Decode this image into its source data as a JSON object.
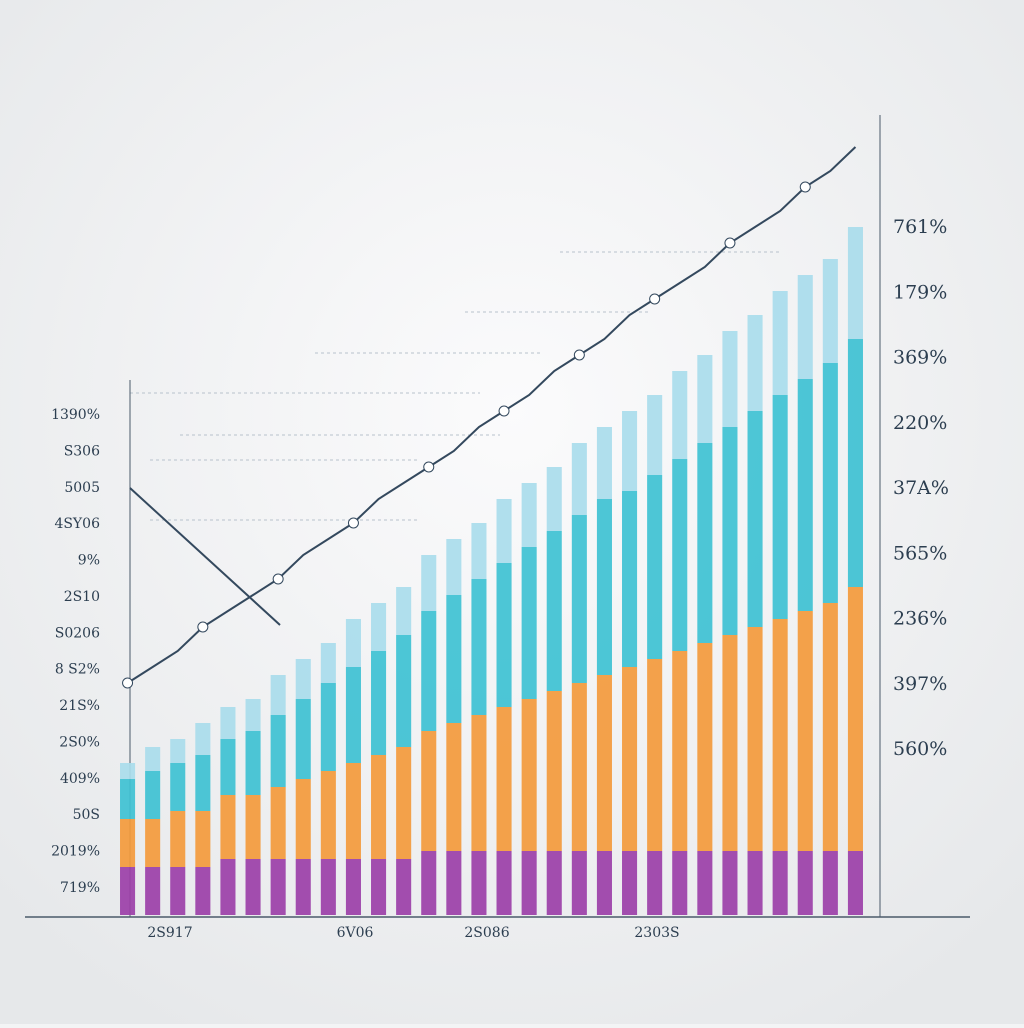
{
  "chart_data": {
    "type": "bar",
    "categories": [
      null,
      null,
      null,
      null,
      null,
      null,
      null,
      null,
      null,
      null,
      null,
      null,
      null,
      null,
      null,
      null,
      null,
      null,
      null,
      null,
      null,
      null,
      null,
      null,
      null,
      null,
      null,
      null,
      null,
      null
    ],
    "series": [
      {
        "color": "#9b3fa8",
        "values": [
          6,
          6,
          6,
          6,
          7,
          7,
          7,
          7,
          7,
          7,
          7,
          7,
          8,
          8,
          8,
          8,
          8,
          8,
          8,
          8,
          8,
          8,
          8,
          8,
          8,
          8,
          8,
          8,
          8,
          8
        ]
      },
      {
        "color": "#f39a3c",
        "values": [
          6,
          6,
          7,
          7,
          8,
          8,
          9,
          10,
          11,
          12,
          13,
          14,
          15,
          16,
          17,
          18,
          19,
          20,
          21,
          22,
          23,
          24,
          25,
          26,
          27,
          28,
          29,
          30,
          31,
          33
        ]
      },
      {
        "color": "#3ec1d3",
        "values": [
          5,
          6,
          6,
          7,
          7,
          8,
          9,
          10,
          11,
          12,
          13,
          14,
          15,
          16,
          17,
          18,
          19,
          20,
          21,
          22,
          22,
          23,
          24,
          25,
          26,
          27,
          28,
          29,
          30,
          31
        ]
      },
      {
        "color": "#a9dcec",
        "values": [
          2,
          3,
          3,
          4,
          4,
          4,
          5,
          5,
          5,
          6,
          6,
          6,
          7,
          7,
          7,
          8,
          8,
          8,
          9,
          9,
          10,
          10,
          11,
          11,
          12,
          12,
          13,
          13,
          13,
          14
        ]
      }
    ],
    "line": {
      "color": "#34495e",
      "values": [
        29,
        31,
        33,
        36,
        38,
        40,
        42,
        45,
        47,
        49,
        52,
        54,
        56,
        58,
        61,
        63,
        65,
        68,
        70,
        72,
        75,
        77,
        79,
        81,
        84,
        86,
        88,
        91,
        93,
        96
      ]
    },
    "ylim": [
      0,
      100
    ],
    "left_labels": [
      "1390%",
      "S306",
      "5005",
      "4SY06",
      "9%",
      "2S10",
      "S0206",
      "8 S2%",
      "21S%",
      "2S0%",
      "409%",
      "50S",
      "2019%",
      "719%"
    ],
    "right_labels": [
      "761%",
      "179%",
      "369%",
      "220%",
      "37A%",
      "565%",
      "236%",
      "397%",
      "560%"
    ],
    "x_labels": [
      "2S917",
      "6V06",
      "2S086",
      "2303S"
    ]
  }
}
